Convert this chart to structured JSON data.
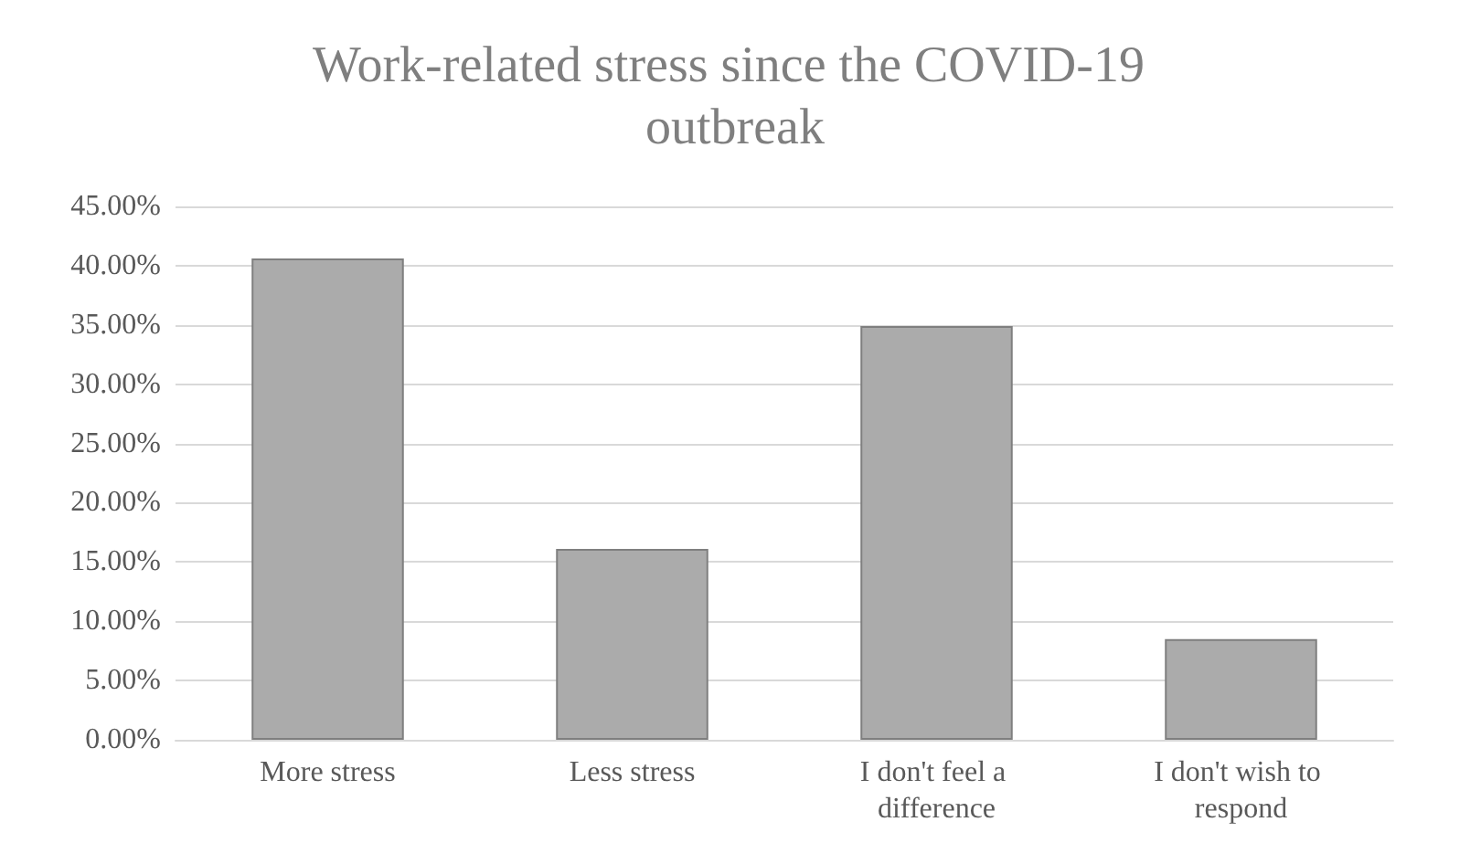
{
  "chart_data": {
    "type": "bar",
    "title": "Work-related stress since the COVID-19 outbreak",
    "categories": [
      "More stress",
      "Less stress",
      "I don't feel a difference",
      "I don't wish to respond"
    ],
    "values": [
      40.6,
      16.1,
      34.9,
      8.5
    ],
    "color": "#ababab",
    "ylim": [
      0,
      45
    ],
    "yticks": [
      {
        "value": 0,
        "label": "0.00%"
      },
      {
        "value": 5,
        "label": "5.00%"
      },
      {
        "value": 10,
        "label": "10.00%"
      },
      {
        "value": 15,
        "label": "15.00%"
      },
      {
        "value": 20,
        "label": "20.00%"
      },
      {
        "value": 25,
        "label": "25.00%"
      },
      {
        "value": 30,
        "label": "30.00%"
      },
      {
        "value": 35,
        "label": "35.00%"
      },
      {
        "value": 40,
        "label": "40.00%"
      },
      {
        "value": 45,
        "label": "45.00%"
      }
    ],
    "grid": "y"
  }
}
